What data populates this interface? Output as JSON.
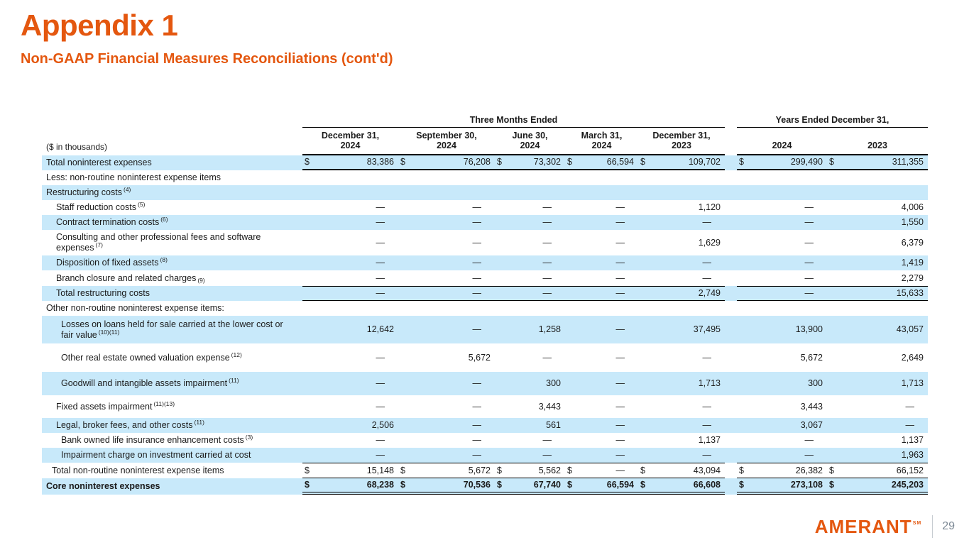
{
  "slide": {
    "title": "Appendix 1",
    "subtitle": "Non-GAAP Financial Measures Reconciliations (cont'd)",
    "accent_color": "#e4570f",
    "row_highlight_color": "#c8e9fa"
  },
  "table": {
    "units_label": "($ in thousands)",
    "group_headers": [
      {
        "label": "Three Months Ended",
        "span": 5
      },
      {
        "label": "Years Ended December 31,",
        "span": 2
      }
    ],
    "column_headers": [
      {
        "lines": [
          "December 31,",
          "2024"
        ]
      },
      {
        "lines": [
          "September 30,",
          "2024"
        ]
      },
      {
        "lines": [
          "June 30,",
          "2024"
        ]
      },
      {
        "lines": [
          "March 31,",
          "2024"
        ]
      },
      {
        "lines": [
          "December 31,",
          "2023"
        ]
      },
      {
        "lines": [
          "2024"
        ]
      },
      {
        "lines": [
          "2023"
        ]
      }
    ],
    "rows": [
      {
        "label": "Total noninterest expenses",
        "indent": 0,
        "shaded": true,
        "dollar": true,
        "values": [
          "83,386",
          "76,208",
          "73,302",
          "66,594",
          "109,702",
          "299,490",
          "311,355"
        ]
      },
      {
        "label": "Less: non-routine noninterest expense items",
        "indent": 0,
        "shaded": false,
        "values": [
          "",
          "",
          "",
          "",
          "",
          "",
          ""
        ]
      },
      {
        "label": "Restructuring costs",
        "sup": "(4)",
        "indent": 0,
        "shaded": true,
        "values": [
          "",
          "",
          "",
          "",
          "",
          "",
          ""
        ]
      },
      {
        "label": "Staff reduction costs",
        "sup": "(5)",
        "indent": 2,
        "shaded": false,
        "values": [
          "—",
          "—",
          "—",
          "—",
          "1,120",
          "—",
          "4,006"
        ]
      },
      {
        "label": "Contract termination costs",
        "sup": "(6)",
        "indent": 2,
        "shaded": true,
        "values": [
          "—",
          "—",
          "—",
          "—",
          "—",
          "—",
          "1,550"
        ]
      },
      {
        "label": "Consulting and other professional fees and software",
        "label2": "expenses",
        "sup": "(7)",
        "indent": 2,
        "shaded": false,
        "values": [
          "—",
          "—",
          "—",
          "—",
          "1,629",
          "—",
          "6,379"
        ]
      },
      {
        "label": "Disposition of fixed assets",
        "sup": "(8)",
        "indent": 2,
        "shaded": true,
        "values": [
          "—",
          "—",
          "—",
          "—",
          "—",
          "—",
          "1,419"
        ]
      },
      {
        "label": "Branch closure and related charges",
        "sup": "(9)",
        "sup_low": true,
        "indent": 2,
        "shaded": false,
        "values": [
          "—",
          "—",
          "—",
          "—",
          "—",
          "—",
          "2,279"
        ]
      },
      {
        "label": "Total restructuring costs",
        "indent": 2,
        "shaded": true,
        "values": [
          "—",
          "—",
          "—",
          "—",
          "2,749",
          "—",
          "15,633"
        ]
      },
      {
        "label": "Other non-routine noninterest expense items:",
        "indent": 0,
        "shaded": false,
        "values": [
          "",
          "",
          "",
          "",
          "",
          "",
          ""
        ]
      },
      {
        "label": "Losses on loans held for sale carried at the lower cost or",
        "label2": "fair value",
        "sup": "(10)(11)",
        "indent": 3,
        "shaded": true,
        "values": [
          "12,642",
          "—",
          "1,258",
          "—",
          "37,495",
          "13,900",
          "43,057"
        ]
      },
      {
        "label": "Other real estate owned valuation expense",
        "sup": "(12)",
        "indent": 3,
        "shaded": false,
        "values": [
          "—",
          "5,672",
          "—",
          "—",
          "—",
          "5,672",
          "2,649"
        ]
      },
      {
        "label": "Goodwill and intangible assets impairment",
        "sup": "(11)",
        "indent": 3,
        "shaded": true,
        "values": [
          "—",
          "—",
          "300",
          "—",
          "1,713",
          "300",
          "1,713"
        ]
      },
      {
        "label": "Fixed assets impairment",
        "sup": "(11)(13)",
        "indent": 2,
        "shaded": false,
        "values": [
          "—",
          "—",
          "3,443",
          "—",
          "—",
          "3,443",
          "—"
        ]
      },
      {
        "label": "Legal, broker fees, and other costs",
        "sup": "(11)",
        "indent": 2,
        "shaded": true,
        "values": [
          "2,506",
          "—",
          "561",
          "—",
          "—",
          "3,067",
          "—"
        ]
      },
      {
        "label": "Bank owned life insurance enhancement costs",
        "sup": "(3)",
        "indent": 3,
        "shaded": false,
        "values": [
          "—",
          "—",
          "—",
          "—",
          "1,137",
          "—",
          "1,137"
        ]
      },
      {
        "label": "Impairment charge on investment carried at cost",
        "indent": 3,
        "shaded": true,
        "values": [
          "—",
          "—",
          "—",
          "—",
          "—",
          "—",
          "1,963"
        ]
      },
      {
        "label": "Total non-routine noninterest expense items",
        "indent": 1,
        "shaded": false,
        "dollar": true,
        "values": [
          "15,148",
          "5,672",
          "5,562",
          "—",
          "43,094",
          "26,382",
          "66,152"
        ]
      },
      {
        "label": "Core noninterest expenses",
        "indent": 0,
        "shaded": true,
        "bold": true,
        "dollar": true,
        "values": [
          "68,238",
          "70,536",
          "67,740",
          "66,594",
          "66,608",
          "273,108",
          "245,203"
        ]
      }
    ]
  },
  "footer": {
    "logo_text": "AMERANT",
    "logo_mark": "SM",
    "page_number": "29"
  }
}
